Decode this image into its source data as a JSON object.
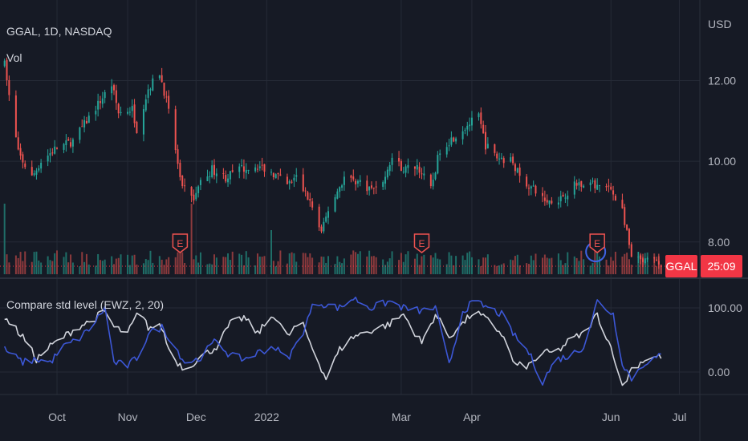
{
  "chart_data": {
    "type": "candlestick",
    "symbol_label": "GGAL, 1D, NASDAQ",
    "volume_label": "Vol",
    "currency": "USD",
    "price_axis": {
      "ticks": [
        {
          "value": 12,
          "label": "12.00"
        },
        {
          "value": 10,
          "label": "10.00"
        },
        {
          "value": 8,
          "label": "8.00"
        }
      ],
      "range": [
        7.2,
        13.6
      ]
    },
    "time_axis": {
      "labels": [
        {
          "label": "Oct",
          "date": "2021-10-01"
        },
        {
          "label": "Nov",
          "date": "2021-11-01"
        },
        {
          "label": "Dec",
          "date": "2021-12-01"
        },
        {
          "label": "2022",
          "date": "2022-01-01"
        },
        {
          "label": "Mar",
          "date": "2022-03-01"
        },
        {
          "label": "Apr",
          "date": "2022-04-01"
        },
        {
          "label": "Jun",
          "date": "2022-06-01"
        },
        {
          "label": "Jul",
          "date": "2022-07-01"
        }
      ],
      "range": [
        "2021-09-06",
        "2022-07-10"
      ]
    },
    "price_series": {
      "start_date": "2021-09-08",
      "last_date": "2022-06-23",
      "anchors": [
        [
          "2021-09-08",
          12.4
        ],
        [
          "2021-09-10",
          11.6
        ],
        [
          "2021-09-14",
          10.2
        ],
        [
          "2021-09-20",
          9.6
        ],
        [
          "2021-09-24",
          10.0
        ],
        [
          "2021-09-30",
          10.3
        ],
        [
          "2021-10-08",
          10.5
        ],
        [
          "2021-10-14",
          11.0
        ],
        [
          "2021-10-20",
          11.5
        ],
        [
          "2021-10-25",
          11.9
        ],
        [
          "2021-10-28",
          11.2
        ],
        [
          "2021-11-03",
          11.3
        ],
        [
          "2021-11-05",
          10.8
        ],
        [
          "2021-11-10",
          11.8
        ],
        [
          "2021-11-15",
          12.2
        ],
        [
          "2021-11-18",
          11.5
        ],
        [
          "2021-11-22",
          10.3
        ],
        [
          "2021-11-24",
          9.5
        ],
        [
          "2021-11-30",
          9.0
        ],
        [
          "2021-12-02",
          9.4
        ],
        [
          "2021-12-08",
          9.8
        ],
        [
          "2021-12-14",
          9.6
        ],
        [
          "2021-12-20",
          9.8
        ],
        [
          "2021-12-28",
          9.9
        ],
        [
          "2022-01-04",
          9.7
        ],
        [
          "2022-01-10",
          9.4
        ],
        [
          "2022-01-14",
          9.6
        ],
        [
          "2022-01-20",
          9.0
        ],
        [
          "2022-01-25",
          8.2
        ],
        [
          "2022-01-28",
          8.8
        ],
        [
          "2022-02-04",
          9.6
        ],
        [
          "2022-02-10",
          9.5
        ],
        [
          "2022-02-16",
          9.3
        ],
        [
          "2022-02-22",
          9.6
        ],
        [
          "2022-02-25",
          10.1
        ],
        [
          "2022-03-02",
          9.8
        ],
        [
          "2022-03-08",
          9.9
        ],
        [
          "2022-03-14",
          9.3
        ],
        [
          "2022-03-18",
          10.3
        ],
        [
          "2022-03-24",
          10.6
        ],
        [
          "2022-03-30",
          10.9
        ],
        [
          "2022-04-04",
          11.1
        ],
        [
          "2022-04-07",
          10.4
        ],
        [
          "2022-04-12",
          10.1
        ],
        [
          "2022-04-19",
          10.0
        ],
        [
          "2022-04-22",
          9.6
        ],
        [
          "2022-04-28",
          9.3
        ],
        [
          "2022-05-04",
          9.0
        ],
        [
          "2022-05-10",
          9.1
        ],
        [
          "2022-05-16",
          9.4
        ],
        [
          "2022-05-20",
          9.5
        ],
        [
          "2022-05-26",
          9.4
        ],
        [
          "2022-06-01",
          9.3
        ],
        [
          "2022-06-06",
          8.8
        ],
        [
          "2022-06-10",
          7.6
        ],
        [
          "2022-06-15",
          7.5
        ],
        [
          "2022-06-20",
          7.55
        ],
        [
          "2022-06-23",
          7.4
        ]
      ]
    },
    "volume": {
      "baseline_value": 1.0,
      "spikes": [
        {
          "date": "2021-09-08",
          "value": 4.0
        },
        {
          "date": "2021-11-29",
          "value": 4.0
        },
        {
          "date": "2022-01-03",
          "value": 2.5
        },
        {
          "date": "2022-05-25",
          "value": 1.6
        }
      ]
    },
    "events": [
      {
        "type": "earnings",
        "label": "E",
        "date": "2021-11-24"
      },
      {
        "type": "earnings",
        "label": "E",
        "date": "2022-03-10"
      },
      {
        "type": "earnings",
        "label": "E",
        "date": "2022-05-26",
        "highlighted": true
      }
    ],
    "last_price_marker": {
      "symbol": "GGAL",
      "countdown": "25:09",
      "value": 7.4
    },
    "indicator": {
      "title": "Compare std level (EWZ, 2, 20)",
      "ticks": [
        {
          "value": 100,
          "label": "100.00"
        },
        {
          "value": 0,
          "label": "0.00"
        }
      ],
      "range": [
        -35,
        140
      ],
      "series": [
        {
          "color": "#d1d4dc",
          "anchors": [
            [
              "2021-09-08",
              85
            ],
            [
              "2021-09-16",
              55
            ],
            [
              "2021-09-22",
              20
            ],
            [
              "2021-09-28",
              40
            ],
            [
              "2021-10-04",
              55
            ],
            [
              "2021-10-10",
              70
            ],
            [
              "2021-10-16",
              80
            ],
            [
              "2021-10-22",
              95
            ],
            [
              "2021-10-26",
              70
            ],
            [
              "2021-11-01",
              60
            ],
            [
              "2021-11-06",
              95
            ],
            [
              "2021-11-10",
              70
            ],
            [
              "2021-11-16",
              70
            ],
            [
              "2021-11-20",
              25
            ],
            [
              "2021-11-26",
              5
            ],
            [
              "2021-12-02",
              20
            ],
            [
              "2021-12-10",
              40
            ],
            [
              "2021-12-16",
              75
            ],
            [
              "2021-12-22",
              85
            ],
            [
              "2021-12-28",
              60
            ],
            [
              "2022-01-04",
              90
            ],
            [
              "2022-01-10",
              55
            ],
            [
              "2022-01-16",
              80
            ],
            [
              "2022-01-22",
              30
            ],
            [
              "2022-01-27",
              -10
            ],
            [
              "2022-02-02",
              35
            ],
            [
              "2022-02-08",
              55
            ],
            [
              "2022-02-16",
              65
            ],
            [
              "2022-02-24",
              75
            ],
            [
              "2022-03-02",
              90
            ],
            [
              "2022-03-10",
              45
            ],
            [
              "2022-03-16",
              90
            ],
            [
              "2022-03-22",
              55
            ],
            [
              "2022-03-28",
              75
            ],
            [
              "2022-04-02",
              95
            ],
            [
              "2022-04-08",
              80
            ],
            [
              "2022-04-14",
              60
            ],
            [
              "2022-04-20",
              10
            ],
            [
              "2022-04-26",
              10
            ],
            [
              "2022-05-02",
              30
            ],
            [
              "2022-05-08",
              30
            ],
            [
              "2022-05-14",
              50
            ],
            [
              "2022-05-20",
              60
            ],
            [
              "2022-05-26",
              90
            ],
            [
              "2022-06-02",
              30
            ],
            [
              "2022-06-06",
              -25
            ],
            [
              "2022-06-10",
              5
            ],
            [
              "2022-06-16",
              20
            ],
            [
              "2022-06-23",
              25
            ]
          ]
        },
        {
          "color": "#3c57d6",
          "anchors": [
            [
              "2021-09-08",
              35
            ],
            [
              "2021-09-16",
              15
            ],
            [
              "2021-09-22",
              20
            ],
            [
              "2021-09-28",
              15
            ],
            [
              "2021-10-04",
              40
            ],
            [
              "2021-10-10",
              50
            ],
            [
              "2021-10-16",
              70
            ],
            [
              "2021-10-22",
              100
            ],
            [
              "2021-10-26",
              15
            ],
            [
              "2021-11-01",
              10
            ],
            [
              "2021-11-06",
              25
            ],
            [
              "2021-11-10",
              60
            ],
            [
              "2021-11-16",
              70
            ],
            [
              "2021-11-20",
              50
            ],
            [
              "2021-11-26",
              15
            ],
            [
              "2021-12-02",
              20
            ],
            [
              "2021-12-10",
              50
            ],
            [
              "2021-12-16",
              25
            ],
            [
              "2021-12-22",
              20
            ],
            [
              "2021-12-28",
              30
            ],
            [
              "2022-01-04",
              40
            ],
            [
              "2022-01-10",
              20
            ],
            [
              "2022-01-16",
              55
            ],
            [
              "2022-01-22",
              110
            ],
            [
              "2022-01-27",
              105
            ],
            [
              "2022-02-02",
              100
            ],
            [
              "2022-02-08",
              115
            ],
            [
              "2022-02-16",
              100
            ],
            [
              "2022-02-24",
              110
            ],
            [
              "2022-03-02",
              100
            ],
            [
              "2022-03-10",
              95
            ],
            [
              "2022-03-16",
              100
            ],
            [
              "2022-03-22",
              10
            ],
            [
              "2022-03-28",
              95
            ],
            [
              "2022-04-02",
              110
            ],
            [
              "2022-04-08",
              100
            ],
            [
              "2022-04-14",
              90
            ],
            [
              "2022-04-20",
              55
            ],
            [
              "2022-04-26",
              30
            ],
            [
              "2022-05-02",
              -15
            ],
            [
              "2022-05-08",
              20
            ],
            [
              "2022-05-14",
              25
            ],
            [
              "2022-05-20",
              40
            ],
            [
              "2022-05-26",
              110
            ],
            [
              "2022-06-02",
              90
            ],
            [
              "2022-06-06",
              15
            ],
            [
              "2022-06-10",
              -10
            ],
            [
              "2022-06-16",
              15
            ],
            [
              "2022-06-23",
              25
            ]
          ]
        }
      ]
    },
    "colors": {
      "background": "#161a25",
      "grid": "#252a36",
      "up": "#26a69a",
      "down": "#ef5350",
      "volume_up": "#1f6e68",
      "volume_down": "#8c3a3d",
      "label_text": "#b2b5be",
      "last_price_label": "#f23645",
      "separator": "#2b303c",
      "highlight_ring": "#3f63e6"
    }
  }
}
